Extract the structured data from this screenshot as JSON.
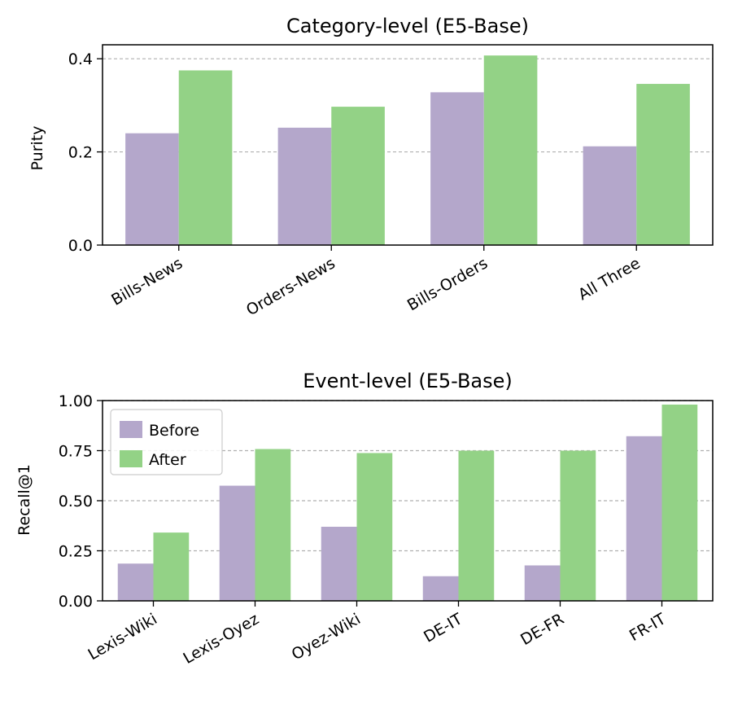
{
  "colors": {
    "before": "#b4a7cb",
    "after": "#93d286",
    "grid": "#b0b0b0",
    "axis": "#000000"
  },
  "chart_data": [
    {
      "type": "bar",
      "title": "Category-level (E5-Base)",
      "xlabel": "",
      "ylabel": "Purity",
      "ylim": [
        0,
        0.43
      ],
      "yticks": [
        0.0,
        0.2,
        0.4
      ],
      "ytick_labels": [
        "0.0",
        "0.2",
        "0.4"
      ],
      "grid": "y-dashed",
      "categories": [
        "Bills-News",
        "Orders-News",
        "Bills-Orders",
        "All Three"
      ],
      "series": [
        {
          "name": "Before",
          "values": [
            0.24,
            0.252,
            0.328,
            0.212
          ]
        },
        {
          "name": "After",
          "values": [
            0.375,
            0.297,
            0.407,
            0.346
          ]
        }
      ],
      "legend": null
    },
    {
      "type": "bar",
      "title": "Event-level (E5-Base)",
      "xlabel": "",
      "ylabel": "Recall@1",
      "ylim": [
        0,
        1.0
      ],
      "yticks": [
        0.0,
        0.25,
        0.5,
        0.75,
        1.0
      ],
      "ytick_labels": [
        "0.00",
        "0.25",
        "0.50",
        "0.75",
        "1.00"
      ],
      "grid": "y-dashed",
      "categories": [
        "Lexis-Wiki",
        "Lexis-Oyez",
        "Oyez-Wiki",
        "DE-IT",
        "DE-FR",
        "FR-IT"
      ],
      "series": [
        {
          "name": "Before",
          "values": [
            0.186,
            0.575,
            0.37,
            0.123,
            0.177,
            0.822
          ]
        },
        {
          "name": "After",
          "values": [
            0.341,
            0.758,
            0.738,
            0.75,
            0.75,
            0.98
          ]
        }
      ],
      "legend": {
        "position": "top-left",
        "entries": [
          "Before",
          "After"
        ]
      }
    }
  ]
}
